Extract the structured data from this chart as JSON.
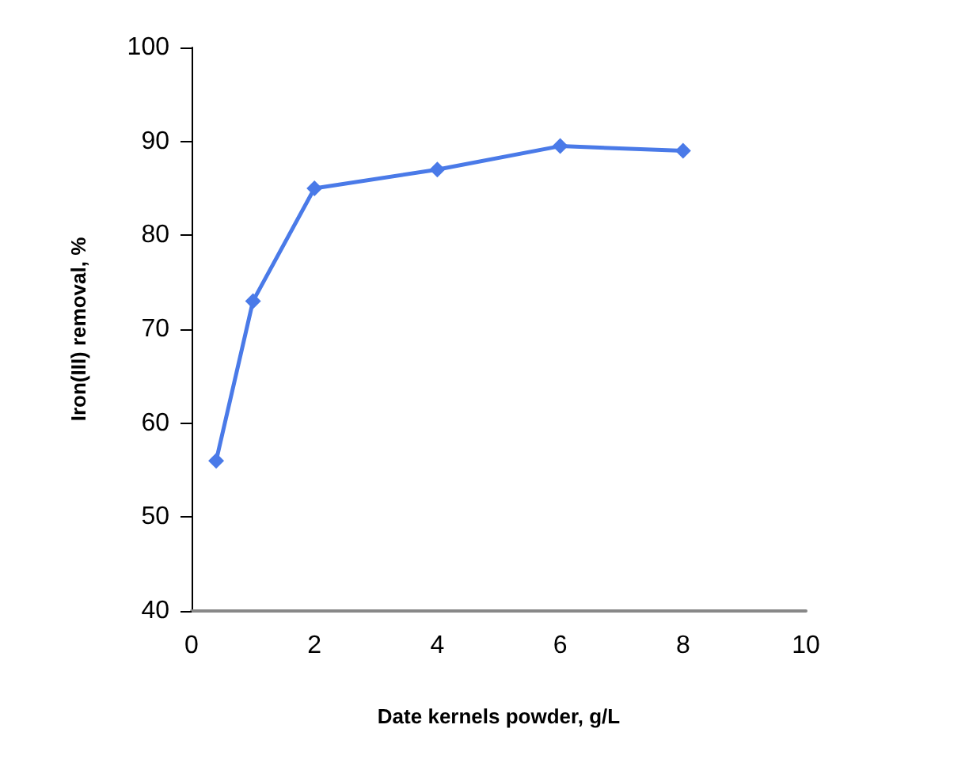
{
  "chart_data": {
    "type": "line",
    "xlabel": "Date kernels powder, g/L",
    "ylabel": "Iron(III) removal, %",
    "x": [
      0.4,
      1,
      2,
      4,
      6,
      8
    ],
    "series": [
      {
        "color": "#4a7ae8",
        "values": [
          56,
          73,
          85,
          87,
          89.5,
          89
        ]
      }
    ],
    "xlim": [
      0,
      10
    ],
    "xticks": [
      0,
      2,
      4,
      6,
      8,
      10
    ],
    "ylim": [
      40,
      100
    ],
    "yticks": [
      40,
      50,
      60,
      70,
      80,
      90,
      100
    ],
    "grid": false,
    "marker": "diamond",
    "line_style": "solid"
  }
}
